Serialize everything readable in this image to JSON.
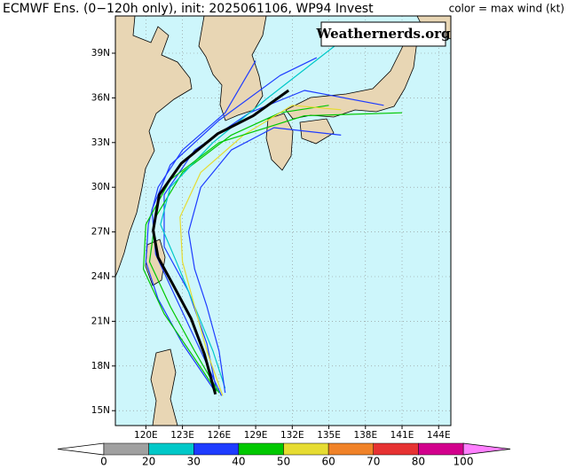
{
  "header": {
    "title": "ECMWF Ens. (0−120h only), init: 2025061106, WP94 Invest",
    "legend_note": "color = max wind (kt)"
  },
  "watermark": "Weathernerds.org",
  "map": {
    "xlim": [
      117.5,
      145
    ],
    "ylim": [
      14,
      41.5
    ],
    "grid": true,
    "ocean_color": "#cdf6fb",
    "xticks": [
      {
        "value": 120,
        "label": "120E"
      },
      {
        "value": 123,
        "label": "123E"
      },
      {
        "value": 126,
        "label": "126E"
      },
      {
        "value": 129,
        "label": "129E"
      },
      {
        "value": 132,
        "label": "132E"
      },
      {
        "value": 135,
        "label": "135E"
      },
      {
        "value": 138,
        "label": "138E"
      },
      {
        "value": 141,
        "label": "141E"
      },
      {
        "value": 144,
        "label": "144E"
      }
    ],
    "yticks": [
      {
        "value": 15,
        "label": "15N"
      },
      {
        "value": 18,
        "label": "18N"
      },
      {
        "value": 21,
        "label": "21N"
      },
      {
        "value": 24,
        "label": "24N"
      },
      {
        "value": 27,
        "label": "27N"
      },
      {
        "value": 30,
        "label": "30N"
      },
      {
        "value": 33,
        "label": "33N"
      },
      {
        "value": 36,
        "label": "36N"
      },
      {
        "value": 39,
        "label": "39N"
      }
    ],
    "tracks": [
      {
        "color": "#1e3cff",
        "lon": [
          126.2,
          124.5,
          122.5,
          120.8,
          120.5,
          122,
          126,
          131,
          134
        ],
        "lat": [
          16,
          19,
          22.5,
          25.5,
          28.5,
          31.5,
          34.5,
          37.5,
          38.7
        ]
      },
      {
        "color": "#1e3cff",
        "lon": [
          125.8,
          125,
          123.5,
          121.5,
          121.5,
          124,
          128.5,
          133,
          139.5
        ],
        "lat": [
          16.3,
          19.5,
          23,
          26,
          29.5,
          32.5,
          35,
          36.5,
          35.5
        ]
      },
      {
        "color": "#00c800",
        "lon": [
          126,
          124,
          122,
          120.3,
          120.8,
          123,
          127,
          131,
          135
        ],
        "lat": [
          16.2,
          19,
          22,
          25,
          28,
          31,
          33.5,
          35,
          35.5
        ]
      },
      {
        "color": "#00c8c8",
        "lon": [
          126.5,
          125.5,
          124,
          122.5,
          121.2,
          122,
          125.5,
          130,
          135.5
        ],
        "lat": [
          16.5,
          19,
          22,
          25,
          27.5,
          30,
          33,
          36,
          39.5
        ]
      },
      {
        "color": "#1e3cff",
        "lon": [
          125.5,
          123,
          121,
          120,
          120.2,
          121,
          123,
          126.5,
          129
        ],
        "lat": [
          16.5,
          19.5,
          22.5,
          25,
          27.5,
          30,
          32.5,
          35,
          38.5
        ]
      },
      {
        "color": "#e6dc32",
        "lon": [
          126.3,
          125,
          124,
          123,
          122.8,
          124.5,
          128,
          132,
          136
        ],
        "lat": [
          16,
          19,
          22,
          25,
          28,
          31,
          33.5,
          35.5,
          35.2
        ]
      },
      {
        "color": "#00c800",
        "lon": [
          125.8,
          124,
          121.5,
          119.8,
          120,
          122,
          126,
          133,
          141
        ],
        "lat": [
          16.3,
          18.5,
          21.5,
          24.5,
          27.5,
          30.5,
          33,
          34.8,
          35
        ]
      },
      {
        "color": "#1e3cff",
        "lon": [
          126.5,
          126,
          125,
          124,
          123.5,
          124.5,
          127,
          130.5,
          136
        ],
        "lat": [
          16.2,
          19,
          22,
          24.5,
          27,
          30,
          32.5,
          34,
          33.5
        ]
      },
      {
        "color": "#000000",
        "lon": [
          125.7,
          124.8,
          123.7,
          122.2,
          121,
          120.6,
          121.1,
          122.9,
          125.9,
          128.8,
          131.7
        ],
        "lat": [
          16.1,
          18.8,
          21.2,
          23.5,
          25.3,
          27.1,
          29.5,
          31.6,
          33.6,
          34.8,
          36.5
        ]
      }
    ]
  },
  "colorbar": {
    "bounds": [
      0,
      20,
      30,
      40,
      50,
      60,
      70,
      80,
      100
    ],
    "colors": [
      "#a0a0a0",
      "#00c8c8",
      "#1e3cff",
      "#00c800",
      "#e6dc32",
      "#f08228",
      "#e63232",
      "#d2008c"
    ],
    "under_color": "#ffffff",
    "over_color": "#ff80ff"
  }
}
